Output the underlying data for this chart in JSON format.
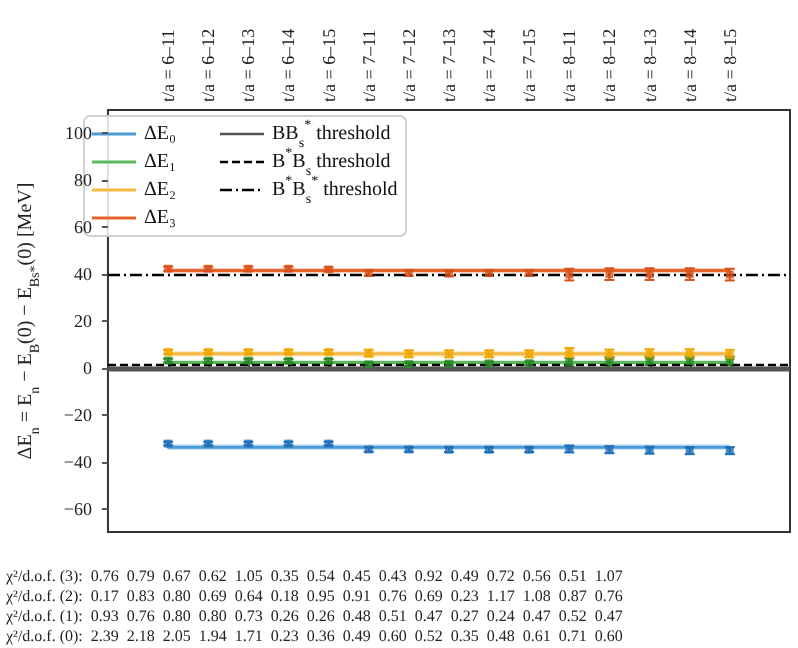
{
  "chart_data": {
    "type": "scatter",
    "ylabel": "ΔE$_{n}$ = E$_{n}$ − E$_{B}$(0) − E$_{Bs*}$(0) [MeV]",
    "categories": [
      "t/a = 6–11",
      "t/a = 6–12",
      "t/a = 6–13",
      "t/a = 6–14",
      "t/a = 6–15",
      "t/a = 7–11",
      "t/a = 7–12",
      "t/a = 7–13",
      "t/a = 7–14",
      "t/a = 7–15",
      "t/a = 8–11",
      "t/a = 8–12",
      "t/a = 8–13",
      "t/a = 8–14",
      "t/a = 8–15"
    ],
    "series": [
      {
        "name": "ΔE₀",
        "type": "line",
        "marker": "none",
        "line_style": "solid",
        "color": "#4a9ad6",
        "values": [
          -33.8,
          -33.8,
          -33.8,
          -33.8,
          -33.8,
          -33.8,
          -33.8,
          -33.8,
          -33.8,
          -33.8,
          -33.8,
          -33.8,
          -33.8,
          -33.8,
          -33.8
        ],
        "lower": [
          -35,
          -35,
          -35,
          -35,
          -35,
          -35,
          -35,
          -35,
          -35,
          -35,
          -35,
          -35,
          -35,
          -35,
          -35
        ],
        "upper": [
          -32.6,
          -32.6,
          -32.6,
          -32.6,
          -32.6,
          -32.6,
          -32.6,
          -32.6,
          -32.6,
          -32.6,
          -32.6,
          -32.6,
          -32.6,
          -32.6,
          -32.6
        ]
      },
      {
        "name": "ΔE₁",
        "type": "line",
        "marker": "none",
        "line_style": "solid",
        "color": "#5cb85c",
        "values": [
          2.3,
          2.3,
          2.3,
          2.3,
          2.3,
          2.3,
          2.3,
          2.3,
          2.3,
          2.3,
          2.3,
          2.3,
          2.3,
          2.3,
          2.3
        ],
        "lower": [
          1.3,
          1.3,
          1.3,
          1.3,
          1.3,
          1.3,
          1.3,
          1.3,
          1.3,
          1.3,
          1.3,
          1.3,
          1.3,
          1.3,
          1.3
        ],
        "upper": [
          3.3,
          3.3,
          3.3,
          3.3,
          3.3,
          3.3,
          3.3,
          3.3,
          3.3,
          3.3,
          3.3,
          3.3,
          3.3,
          3.3,
          3.3
        ]
      },
      {
        "name": "ΔE₂",
        "type": "line",
        "marker": "none",
        "line_style": "solid",
        "color": "#f5b942",
        "values": [
          6,
          6,
          6,
          6,
          6,
          6,
          6,
          6,
          6,
          6,
          6,
          6,
          6,
          6,
          6
        ],
        "lower": [
          4.8,
          4.8,
          4.8,
          4.8,
          4.8,
          4.8,
          4.8,
          4.8,
          4.8,
          4.8,
          4.8,
          4.8,
          4.8,
          4.8,
          4.8
        ],
        "upper": [
          7.2,
          7.2,
          7.2,
          7.2,
          7.2,
          7.2,
          7.2,
          7.2,
          7.2,
          7.2,
          7.2,
          7.2,
          7.2,
          7.2,
          7.2
        ]
      },
      {
        "name": "ΔE₃",
        "type": "line",
        "marker": "none",
        "line_style": "solid",
        "color": "#e8642c",
        "values": [
          41.5,
          41.5,
          41.5,
          41.5,
          41.5,
          41.5,
          41.5,
          41.5,
          41.5,
          41.5,
          41.5,
          41.5,
          41.5,
          41.5,
          41.5
        ],
        "lower": [
          40.4,
          40.4,
          40.4,
          40.4,
          40.4,
          40.4,
          40.4,
          40.4,
          40.4,
          40.4,
          40.4,
          40.4,
          40.4,
          40.4,
          40.4
        ],
        "upper": [
          42.6,
          42.6,
          42.6,
          42.6,
          42.6,
          42.6,
          42.6,
          42.6,
          42.6,
          42.6,
          42.6,
          42.6,
          42.6,
          42.6,
          42.6
        ]
      },
      {
        "marker": "square",
        "color": "#1f6fb8",
        "values": [
          -32.3,
          -32.3,
          -32.3,
          -32.3,
          -32.3,
          -34.8,
          -34.8,
          -34.9,
          -34.9,
          -34.9,
          -34.6,
          -34.9,
          -35.1,
          -35.3,
          -35.3
        ],
        "errors": [
          0.8,
          0.8,
          0.8,
          0.8,
          0.8,
          1,
          1,
          1,
          1,
          1,
          1.5,
          1.5,
          1.5,
          1.5,
          1.5
        ]
      },
      {
        "marker": "square",
        "color": "#2a8a2a",
        "values": [
          3.1,
          3.1,
          3.1,
          3,
          3,
          1.5,
          1.6,
          1.8,
          1.9,
          2,
          2.5,
          2.8,
          3,
          3,
          3
        ],
        "errors": [
          0.8,
          0.8,
          0.8,
          0.8,
          0.8,
          0.8,
          0.8,
          0.8,
          0.8,
          0.8,
          1.8,
          1.8,
          1.8,
          1.8,
          1.8
        ]
      },
      {
        "marker": "square",
        "color": "#f0a800",
        "values": [
          6.8,
          6.8,
          6.8,
          6.8,
          6.8,
          6.3,
          6,
          6,
          6,
          6,
          6.5,
          5.8,
          6,
          6,
          5.7
        ],
        "errors": [
          0.8,
          0.8,
          0.8,
          0.8,
          0.8,
          1.5,
          1.5,
          1.5,
          1.5,
          1.5,
          2,
          2,
          2,
          2,
          2
        ]
      },
      {
        "marker": "square",
        "color": "#d9501a",
        "values": [
          42.3,
          42.3,
          42.3,
          42.3,
          42,
          40.5,
          40.5,
          40.3,
          40.5,
          40.5,
          39.8,
          40,
          40,
          40,
          39.8
        ],
        "errors": [
          0.9,
          0.9,
          0.9,
          0.9,
          0.9,
          1.2,
          1.2,
          1.2,
          1.2,
          1.2,
          2.5,
          2.5,
          2.5,
          2.5,
          2.5
        ]
      }
    ],
    "ref_lines": [
      {
        "axis": "y",
        "value": 0,
        "label": "BB$_{s}$$^{*}$ threshold",
        "color": "#555555",
        "line_style": "solid"
      },
      {
        "axis": "y",
        "value": 1.4,
        "label": "B$^{*}$B$_{s}$ threshold",
        "color": "#000000",
        "line_style": "dashed"
      },
      {
        "axis": "y",
        "value": 39.7,
        "label": "B$^{*}$B$_{s}$$^{*}$ threshold",
        "color": "#000000",
        "line_style": "dashdot"
      }
    ],
    "ylim": [
      -70,
      110
    ],
    "yticks": [
      -60,
      -40,
      -20,
      0,
      20,
      40,
      60,
      80,
      100
    ],
    "grid": false,
    "legend": "top left",
    "annotations": [
      "χ²/d.o.f. (3):  0.76  0.79  0.67  0.62  1.05  0.35  0.54  0.45  0.43  0.92  0.49  0.72  0.56  0.51  1.07",
      "χ²/d.o.f. (2):  0.17  0.83  0.80  0.69  0.64  0.18  0.95  0.91  0.76  0.69  0.23  1.17  1.08  0.87  0.76",
      "χ²/d.o.f. (1):  0.93  0.76  0.80  0.80  0.73  0.26  0.26  0.48  0.51  0.47  0.27  0.24  0.47  0.52  0.47",
      "χ²/d.o.f. (0):  2.39  2.18  2.05  1.94  1.71  0.23  0.36  0.49  0.60  0.52  0.35  0.48  0.61  0.71  0.60"
    ]
  }
}
